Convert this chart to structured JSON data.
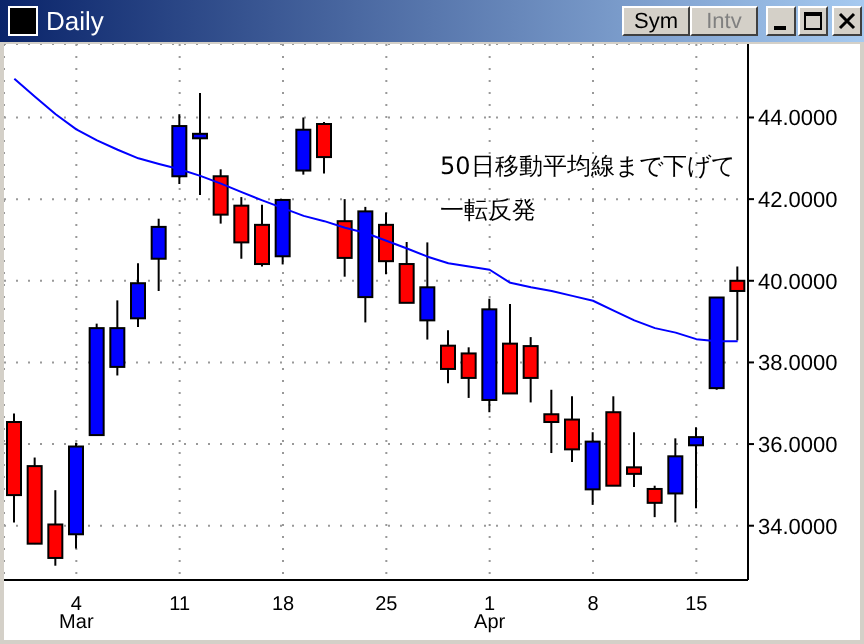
{
  "chart_data": {
    "type": "candlestick",
    "title": "Daily",
    "categories": [
      null,
      null,
      null,
      "4\nMar",
      null,
      null,
      null,
      null,
      "11",
      null,
      null,
      null,
      null,
      "18",
      null,
      null,
      null,
      null,
      "25",
      null,
      null,
      null,
      null,
      "1\nApr",
      null,
      null,
      null,
      null,
      "8",
      null,
      null,
      null,
      null,
      "15",
      null,
      null
    ],
    "ohlc": [
      [
        36.54,
        36.75,
        34.08,
        34.75
      ],
      [
        35.46,
        35.67,
        33.55,
        33.56
      ],
      [
        34.03,
        34.87,
        33.02,
        33.21
      ],
      [
        33.79,
        36.03,
        33.44,
        35.94
      ],
      [
        36.22,
        38.95,
        36.22,
        38.84
      ],
      [
        37.89,
        39.52,
        37.68,
        38.84
      ],
      [
        39.08,
        40.43,
        38.87,
        39.94
      ],
      [
        40.54,
        41.52,
        39.75,
        41.32
      ],
      [
        42.56,
        44.08,
        42.37,
        43.79
      ],
      [
        43.49,
        44.6,
        42.1,
        43.6
      ],
      [
        42.56,
        42.73,
        41.4,
        41.62
      ],
      [
        41.84,
        42.05,
        40.54,
        40.94
      ],
      [
        41.37,
        41.86,
        40.35,
        40.41
      ],
      [
        40.6,
        41.98,
        40.4,
        41.98
      ],
      [
        42.7,
        44.0,
        42.6,
        43.7
      ],
      [
        43.84,
        43.89,
        42.63,
        43.03
      ],
      [
        41.46,
        42.0,
        40.1,
        40.56
      ],
      [
        39.6,
        41.81,
        38.98,
        41.7
      ],
      [
        41.37,
        41.67,
        40.16,
        40.48
      ],
      [
        40.41,
        40.95,
        39.46,
        39.46
      ],
      [
        39.03,
        40.94,
        38.56,
        39.84
      ],
      [
        38.41,
        38.79,
        37.49,
        37.84
      ],
      [
        38.22,
        38.37,
        37.13,
        37.62
      ],
      [
        37.08,
        39.56,
        36.78,
        39.3
      ],
      [
        38.46,
        39.43,
        37.24,
        37.24
      ],
      [
        38.4,
        38.62,
        37.02,
        37.62
      ],
      [
        36.73,
        37.33,
        35.78,
        36.54
      ],
      [
        36.6,
        37.17,
        35.56,
        35.87
      ],
      [
        34.89,
        36.29,
        34.51,
        36.06
      ],
      [
        36.78,
        37.17,
        34.98,
        34.98
      ],
      [
        35.43,
        36.29,
        34.95,
        35.27
      ],
      [
        34.9,
        34.98,
        34.21,
        34.56
      ],
      [
        34.79,
        36.14,
        34.08,
        35.7
      ],
      [
        35.97,
        36.41,
        34.43,
        36.17
      ],
      [
        37.37,
        39.59,
        37.33,
        39.59
      ],
      [
        40.0,
        40.35,
        38.54,
        39.75
      ]
    ],
    "colors": [
      "#ff0000",
      "#ff0000",
      "#ff0000",
      "#0000ff",
      "#0000ff",
      "#0000ff",
      "#0000ff",
      "#0000ff",
      "#0000ff",
      "#0000ff",
      "#ff0000",
      "#ff0000",
      "#ff0000",
      "#0000ff",
      "#0000ff",
      "#ff0000",
      "#ff0000",
      "#0000ff",
      "#ff0000",
      "#ff0000",
      "#0000ff",
      "#ff0000",
      "#ff0000",
      "#0000ff",
      "#ff0000",
      "#ff0000",
      "#ff0000",
      "#ff0000",
      "#0000ff",
      "#ff0000",
      "#ff0000",
      "#ff0000",
      "#0000ff",
      "#0000ff",
      "#0000ff",
      "#ff0000"
    ],
    "series": [
      {
        "type": "line",
        "color": "#0000ff",
        "values": [
          44.95,
          44.51,
          44.08,
          43.71,
          43.44,
          43.21,
          43.0,
          42.86,
          42.73,
          42.57,
          42.38,
          42.17,
          41.97,
          41.78,
          41.59,
          41.46,
          41.3,
          41.17,
          40.98,
          40.79,
          40.59,
          40.43,
          40.35,
          40.27,
          39.95,
          39.84,
          39.75,
          39.63,
          39.51,
          39.27,
          39.03,
          38.84,
          38.73,
          38.57,
          38.52,
          38.52
        ]
      }
    ],
    "ylim": [
      32.67,
      45.8
    ],
    "yticks": [
      {
        "value": 34,
        "label": "34.0000"
      },
      {
        "value": 36,
        "label": "36.0000"
      },
      {
        "value": 38,
        "label": "38.0000"
      },
      {
        "value": 40,
        "label": "40.0000"
      },
      {
        "value": 42,
        "label": "42.0000"
      },
      {
        "value": 44,
        "label": "44.0000"
      }
    ],
    "grid": true,
    "annotations": [
      "50日移動平均線まで下げて一転反発",
      "Sym",
      "Intv"
    ]
  }
}
